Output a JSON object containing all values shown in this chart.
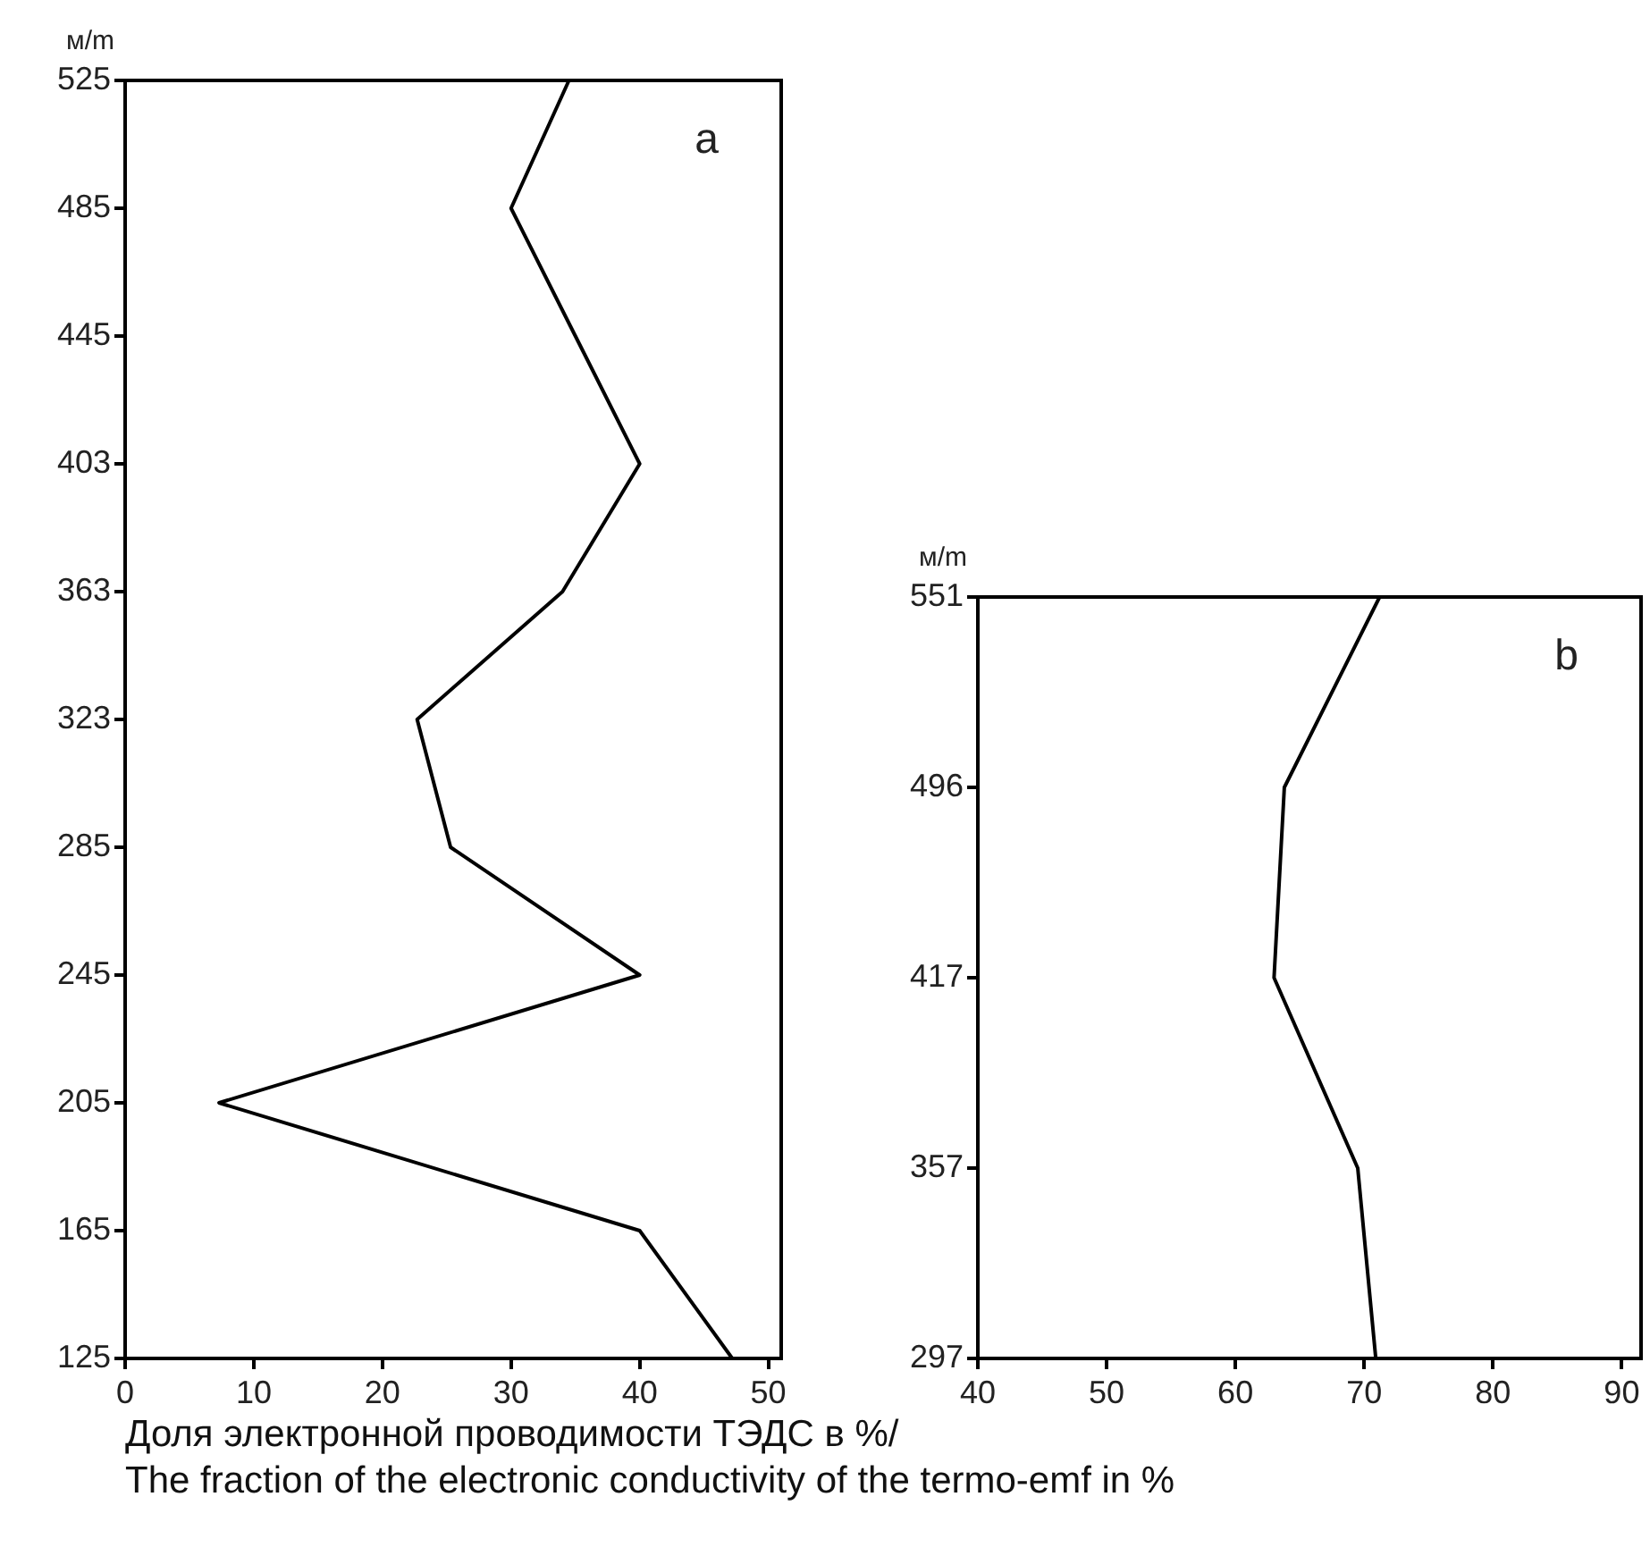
{
  "chart_data": [
    {
      "type": "line",
      "orientation": "horizontal",
      "ylabel": "м/m",
      "xlabel": "Доля электронной проводимости ТЭДС в %/\nThe fraction of the electronic conductivity of the termo-emf in %",
      "categories": [
        "525",
        "485",
        "445",
        "403",
        "363",
        "323",
        "285",
        "245",
        "205",
        "165",
        "125"
      ],
      "values": [
        34.5,
        30,
        35,
        40,
        34,
        22.7,
        25.3,
        40,
        7.3,
        40,
        47.2
      ],
      "color": "#000000",
      "marker": "none",
      "grid": false,
      "xlim": [
        0,
        51
      ],
      "xticks": [
        0,
        10,
        20,
        30,
        40,
        50
      ],
      "annotations": [
        "a"
      ]
    },
    {
      "type": "line",
      "orientation": "horizontal",
      "ylabel": "м/m",
      "categories": [
        "551",
        "496",
        "417",
        "357",
        "297"
      ],
      "values": [
        71.2,
        63.8,
        63,
        69.5,
        70.9
      ],
      "color": "#000000",
      "marker": "none",
      "grid": false,
      "xlim": [
        40,
        91.5
      ],
      "xticks": [
        40,
        50,
        60,
        70,
        80,
        90
      ],
      "annotations": [
        "b"
      ]
    }
  ]
}
